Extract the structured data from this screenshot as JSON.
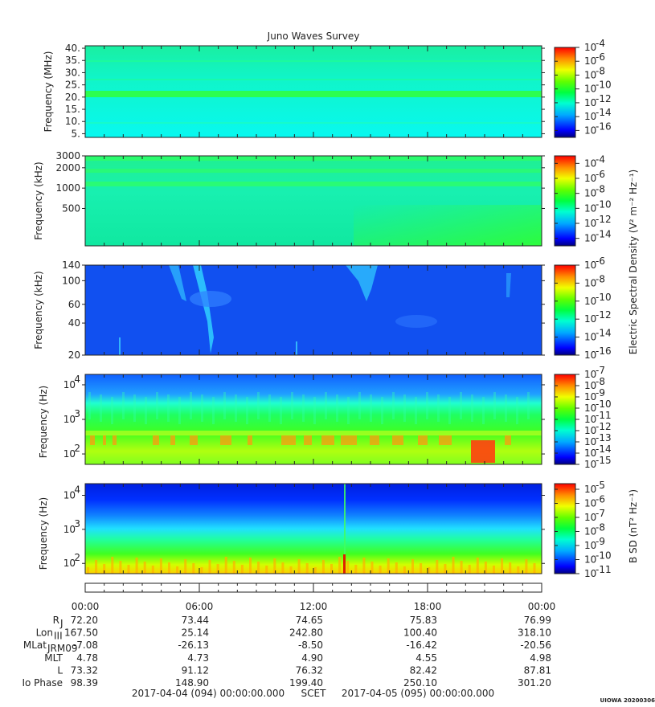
{
  "chart_data": {
    "type": "heatmap",
    "title": "Juno Waves Survey",
    "panels": [
      {
        "id": "p1",
        "ylabel": "Frequency (MHz)",
        "yscale": "linear",
        "ylim": [
          3.5,
          41
        ],
        "yticks": [
          5,
          10,
          15,
          20,
          25,
          30,
          35,
          40
        ],
        "ytick_labels": [
          "5.",
          "10.",
          "15.",
          "20.",
          "25.",
          "30.",
          "35.",
          "40."
        ],
        "colorbar": {
          "exp_ticks": [
            -4,
            -6,
            -8,
            -10,
            -12,
            -14,
            -16
          ],
          "range": [
            -17,
            -4
          ]
        }
      },
      {
        "id": "p2",
        "ylabel": "Frequency (kHz)",
        "yscale": "log",
        "ylim": [
          140,
          3000
        ],
        "yticks": [
          500,
          1000,
          2000,
          3000
        ],
        "ytick_labels": [
          "500",
          "1000",
          "2000",
          "3000"
        ],
        "colorbar": {
          "exp_ticks": [
            -4,
            -6,
            -8,
            -10,
            -12,
            -14
          ],
          "range": [
            -15,
            -3
          ],
          "label": "Electric Spectral Density (V² m⁻² Hz⁻¹)"
        }
      },
      {
        "id": "p3",
        "ylabel": "Frequency (kHz)",
        "yscale": "log",
        "ylim": [
          20,
          140
        ],
        "yticks": [
          20,
          40,
          60,
          100,
          140
        ],
        "ytick_labels": [
          "20",
          "40",
          "60",
          "100",
          "140"
        ],
        "colorbar": {
          "exp_ticks": [
            -6,
            -8,
            -10,
            -12,
            -14,
            -16
          ],
          "range": [
            -16,
            -6
          ]
        }
      },
      {
        "id": "p4",
        "ylabel": "Frequency (Hz)",
        "yscale": "log",
        "ylim": [
          50,
          20000
        ],
        "yticks": [
          100,
          1000,
          10000
        ],
        "ytick_labels": [
          "10",
          "10",
          "10"
        ],
        "ytick_exp": [
          "2",
          "3",
          "4"
        ],
        "colorbar": {
          "exp_ticks": [
            -7,
            -8,
            -9,
            -10,
            -11,
            -12,
            -13,
            -14,
            -15
          ],
          "range": [
            -15,
            -7
          ]
        }
      },
      {
        "id": "p5",
        "ylabel": "Frequency (Hz)",
        "yscale": "log",
        "ylim": [
          50,
          22000
        ],
        "yticks": [
          100,
          1000,
          10000
        ],
        "ytick_labels": [
          "10",
          "10",
          "10"
        ],
        "ytick_exp": [
          "2",
          "3",
          "4"
        ],
        "colorbar": {
          "exp_ticks": [
            -5,
            -6,
            -7,
            -8,
            -9,
            -10,
            -11
          ],
          "range": [
            -11,
            -4.6
          ],
          "label": "B SD (nT² Hz⁻¹)"
        }
      }
    ],
    "x_axis": {
      "ticks": [
        "00:00",
        "06:00",
        "12:00",
        "18:00",
        "00:00"
      ],
      "start": "2017-04-04 (094) 00:00:00.000",
      "end": "2017-04-05 (095) 00:00:00.000",
      "frame": "SCET"
    },
    "ephemeris": {
      "rows": [
        {
          "label": "R",
          "sub": "J",
          "values": [
            "72.20",
            "73.44",
            "74.65",
            "75.83",
            "76.99"
          ]
        },
        {
          "label": "Lon",
          "sub": "III",
          "values": [
            "167.50",
            "25.14",
            "242.80",
            "100.40",
            "318.10"
          ]
        },
        {
          "label": "MLat",
          "sub": "JRM09",
          "values": [
            "-7.08",
            "-26.13",
            "-8.50",
            "-16.42",
            "-20.56"
          ]
        },
        {
          "label": "MLT",
          "sub": "",
          "values": [
            "4.78",
            "4.73",
            "4.90",
            "4.55",
            "4.98"
          ]
        },
        {
          "label": "L",
          "sub": "",
          "values": [
            "73.32",
            "91.12",
            "76.32",
            "82.42",
            "87.81"
          ]
        },
        {
          "label": "Io Phase",
          "sub": "",
          "values": [
            "98.39",
            "148.90",
            "199.40",
            "250.10",
            "301.20"
          ]
        }
      ]
    },
    "footer_tag": "UIOWA 20200306"
  },
  "colors": {
    "palette": [
      "#0000a0",
      "#0040ff",
      "#00c8ff",
      "#00ff80",
      "#40ff00",
      "#d0ff00",
      "#ffff00",
      "#ff8000",
      "#ff1000"
    ]
  }
}
